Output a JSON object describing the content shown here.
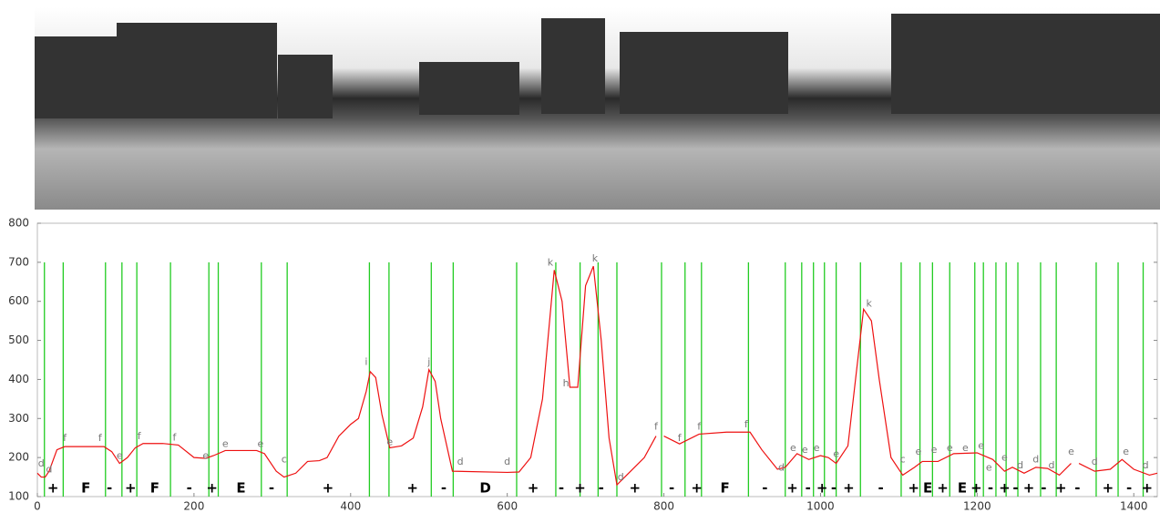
{
  "chart_data": {
    "type": "line",
    "xlim": [
      0,
      1430
    ],
    "ylim": [
      100,
      800
    ],
    "xticks": [
      0,
      200,
      400,
      600,
      800,
      1000,
      1200,
      1400
    ],
    "yticks": [
      100,
      200,
      300,
      400,
      500,
      600,
      700,
      800
    ],
    "series": [
      {
        "color": "#ee1111",
        "x": [
          0,
          5,
          10,
          15,
          25,
          35,
          60,
          85,
          95,
          105,
          115,
          125,
          135,
          160,
          180,
          200,
          215,
          225,
          240,
          280,
          290,
          305,
          315,
          330,
          345,
          360,
          370,
          385,
          400,
          410,
          420,
          425,
          432,
          440,
          450,
          465,
          480,
          492,
          500,
          508,
          515,
          530,
          600,
          615,
          630,
          645,
          660,
          670,
          680,
          690,
          700,
          710,
          720,
          730,
          740,
          750,
          775,
          790,
          795,
          800,
          820,
          845,
          880,
          910,
          925,
          945,
          955,
          970,
          985,
          1000,
          1010,
          1020,
          1035,
          1055,
          1065,
          1075,
          1090,
          1105,
          1120,
          1130,
          1150,
          1170,
          1200,
          1220,
          1235,
          1245,
          1260,
          1275,
          1290,
          1305,
          1320,
          1325,
          1330,
          1350,
          1370,
          1385,
          1400,
          1420,
          1430
        ],
        "values": [
          160,
          150,
          150,
          165,
          220,
          228,
          228,
          228,
          215,
          185,
          200,
          225,
          236,
          236,
          232,
          200,
          198,
          205,
          218,
          218,
          210,
          165,
          150,
          160,
          190,
          192,
          200,
          255,
          285,
          300,
          370,
          420,
          405,
          310,
          225,
          230,
          250,
          330,
          425,
          395,
          300,
          165,
          162,
          163,
          200,
          350,
          680,
          600,
          380,
          380,
          640,
          690,
          500,
          250,
          130,
          150,
          200,
          255,
          null,
          255,
          235,
          260,
          265,
          265,
          220,
          170,
          175,
          210,
          195,
          205,
          200,
          185,
          230,
          580,
          550,
          400,
          200,
          155,
          175,
          190,
          190,
          210,
          212,
          195,
          165,
          175,
          160,
          175,
          172,
          155,
          185,
          null,
          185,
          165,
          170,
          195,
          170,
          155,
          160
        ]
      }
    ],
    "vlines": {
      "color": "#22cc22",
      "top": 700,
      "x": [
        9,
        33,
        87,
        108,
        127,
        170,
        219,
        231,
        286,
        319,
        424,
        449,
        503,
        531,
        612,
        662,
        693,
        716,
        740,
        797,
        827,
        848,
        908,
        955,
        976,
        991,
        1005,
        1020,
        1051,
        1103,
        1127,
        1143,
        1165,
        1197,
        1208,
        1224,
        1237,
        1252,
        1281,
        1301,
        1352,
        1380,
        1412
      ]
    },
    "annotations": {
      "labels": [
        "d",
        "d",
        "f",
        "f",
        "e",
        "f",
        "f",
        "e",
        "e",
        "e",
        "c",
        "i",
        "e",
        "j",
        "d",
        "d",
        "k",
        "h",
        "k",
        "d",
        "f",
        "f",
        "f",
        "f",
        "d",
        "e",
        "e",
        "e",
        "e",
        "k",
        "c",
        "e",
        "e",
        "e",
        "e",
        "e",
        "e",
        "e",
        "d",
        "d",
        "d",
        "e",
        "d",
        "e",
        "d"
      ],
      "x": [
        5,
        15,
        35,
        80,
        105,
        130,
        175,
        215,
        240,
        285,
        315,
        420,
        450,
        500,
        540,
        600,
        655,
        675,
        712,
        745,
        790,
        820,
        845,
        905,
        950,
        965,
        980,
        995,
        1020,
        1062,
        1105,
        1125,
        1145,
        1165,
        1185,
        1205,
        1215,
        1235,
        1255,
        1275,
        1295,
        1320,
        1350,
        1390,
        1415
      ],
      "y": [
        170,
        155,
        235,
        235,
        190,
        240,
        237,
        190,
        220,
        220,
        180,
        430,
        225,
        430,
        175,
        175,
        685,
        375,
        695,
        135,
        265,
        235,
        265,
        270,
        160,
        210,
        205,
        210,
        195,
        580,
        180,
        200,
        205,
        210,
        210,
        215,
        160,
        185,
        165,
        180,
        165,
        200,
        175,
        200,
        165
      ]
    },
    "segment_labels": {
      "labels": [
        "+",
        "F",
        "-",
        "+",
        "F",
        "-",
        "+",
        "E",
        "-",
        "+",
        "+",
        "-",
        "D",
        "+",
        "-",
        "+",
        "-",
        "+",
        "-",
        "+",
        "F",
        "-",
        "+",
        "-",
        "+",
        "-",
        "+",
        "-",
        "+",
        "E",
        "+",
        "E",
        "+",
        "-",
        "+",
        "-",
        "+",
        "-",
        "+",
        "-",
        "+",
        "-",
        "+"
      ],
      "x": [
        20,
        62,
        92,
        119,
        150,
        194,
        223,
        260,
        299,
        371,
        479,
        519,
        572,
        633,
        669,
        693,
        720,
        763,
        810,
        842,
        878,
        929,
        964,
        984,
        1002,
        1017,
        1036,
        1077,
        1119,
        1137,
        1156,
        1181,
        1199,
        1217,
        1235,
        1249,
        1266,
        1285,
        1307,
        1328,
        1367,
        1394,
        1417
      ]
    }
  }
}
